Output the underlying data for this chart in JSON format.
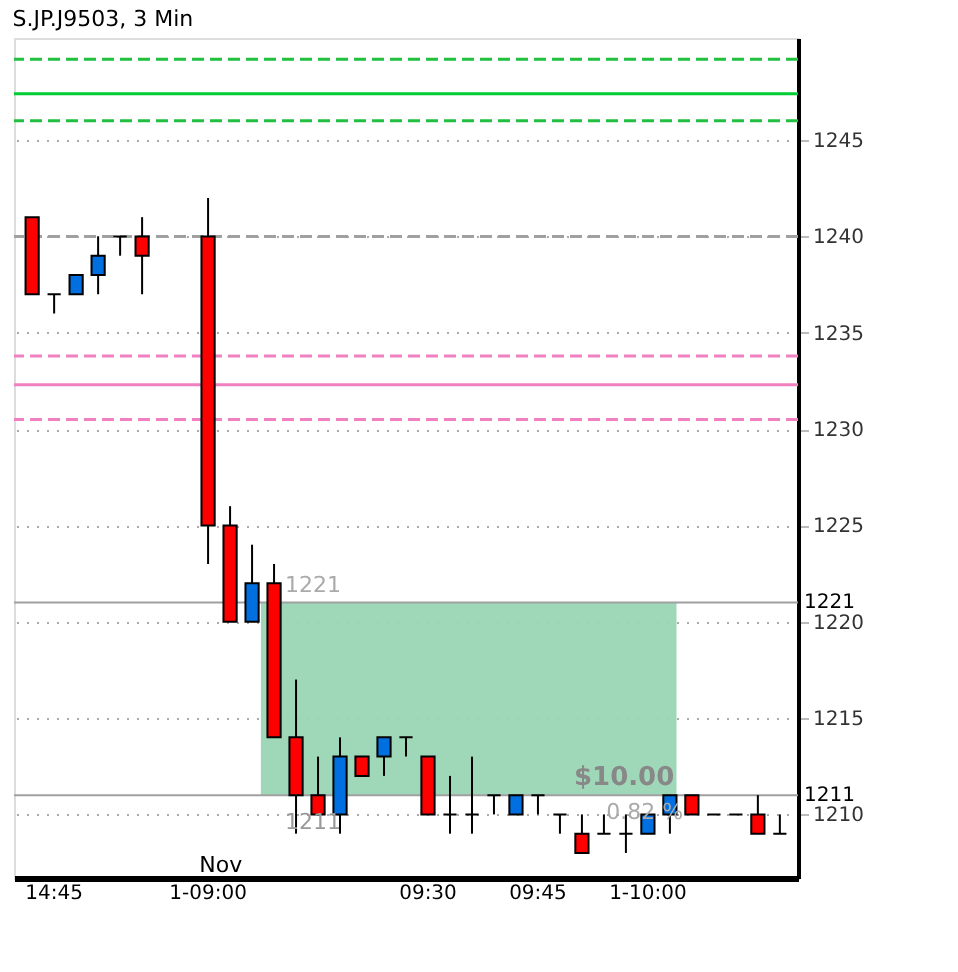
{
  "chart_data": {
    "type": "candlestick",
    "title": "S.JP.J9503, 3 Min",
    "categories": [
      null,
      "14:45",
      null,
      null,
      null,
      null,
      null,
      null,
      "1-09:00",
      null,
      null,
      null,
      null,
      null,
      null,
      null,
      null,
      null,
      "09:30",
      null,
      null,
      null,
      null,
      "09:45",
      null,
      null,
      null,
      null,
      "1-10:00",
      null,
      null,
      null,
      null,
      null,
      null
    ],
    "ohlc": [
      [
        1241,
        1241,
        1237,
        1237
      ],
      [
        1237,
        1237,
        1236,
        1237
      ],
      [
        1237,
        1238,
        1237,
        1238
      ],
      [
        1238,
        1240,
        1237,
        1239
      ],
      [
        1240,
        1240,
        1239,
        1240
      ],
      [
        1240,
        1241,
        1237,
        1239
      ],
      null,
      null,
      [
        1240,
        1242,
        1223,
        1225
      ],
      [
        1225,
        1226,
        1220,
        1220
      ],
      [
        1220,
        1224,
        1220,
        1222
      ],
      [
        1222,
        1223,
        1214,
        1214
      ],
      [
        1214,
        1217,
        1209,
        1211
      ],
      [
        1211,
        1213,
        1210,
        1210
      ],
      [
        1210,
        1214,
        1209,
        1213
      ],
      [
        1213,
        1213,
        1212,
        1212
      ],
      [
        1213,
        1214,
        1212,
        1214
      ],
      [
        1214,
        1214,
        1213,
        1214
      ],
      [
        1213,
        1213,
        1210,
        1210
      ],
      [
        1210,
        1212,
        1209,
        1210
      ],
      [
        1210,
        1213,
        1209,
        1210
      ],
      [
        1211,
        1211,
        1210,
        1211
      ],
      [
        1210,
        1211,
        1210,
        1211
      ],
      [
        1211,
        1211,
        1210,
        1211
      ],
      [
        1210,
        1210,
        1209,
        1210
      ],
      [
        1209,
        1210,
        1208,
        1208
      ],
      [
        1209,
        1210,
        1209,
        1209
      ],
      [
        1209,
        1210,
        1208,
        1209
      ],
      [
        1209,
        1210,
        1209,
        1210
      ],
      [
        1210,
        1211,
        1209,
        1211
      ],
      [
        1211,
        1211,
        1210,
        1210
      ],
      [
        1210,
        1210,
        1210,
        1210
      ],
      [
        1210,
        1210,
        1210,
        1210
      ],
      [
        1210,
        1211,
        1209,
        1209
      ],
      [
        1209,
        1210,
        1209,
        1209
      ]
    ],
    "colors": [
      "#ff0000",
      "#000000",
      "#0070e0",
      "#0070e0",
      "#000000",
      "#ff0000",
      null,
      null,
      "#ff0000",
      "#ff0000",
      "#0070e0",
      "#ff0000",
      "#ff0000",
      "#ff0000",
      "#0070e0",
      "#ff0000",
      "#0070e0",
      "#000000",
      "#ff0000",
      "#000000",
      "#000000",
      "#000000",
      "#0070e0",
      "#000000",
      "#000000",
      "#ff0000",
      "#000000",
      "#000000",
      "#0070e0",
      "#0070e0",
      "#ff0000",
      "#000000",
      "#000000",
      "#ff0000",
      "#000000"
    ],
    "ylim": [
      1206.7,
      1250.3
    ],
    "yticks": [
      1210,
      1215,
      1220,
      1225,
      1230,
      1235,
      1240,
      1245
    ],
    "grid": "y",
    "ref_lines": [
      {
        "axis": "y",
        "value": 1249.2,
        "color": "#22c040",
        "line_style": "dashed"
      },
      {
        "axis": "y",
        "value": 1247.4,
        "color": "#00cc33",
        "line_style": "solid"
      },
      {
        "axis": "y",
        "value": 1246.0,
        "color": "#22c040",
        "line_style": "dashed"
      },
      {
        "axis": "y",
        "value": 1240,
        "color": "#a0a0a0",
        "line_style": "dashed"
      },
      {
        "axis": "y",
        "value": 1233.8,
        "color": "#f080c0",
        "line_style": "dashed"
      },
      {
        "axis": "y",
        "value": 1232.3,
        "color": "#f080c0",
        "line_style": "solid"
      },
      {
        "axis": "y",
        "value": 1230.5,
        "color": "#f080c0",
        "line_style": "dashed"
      },
      {
        "axis": "y",
        "value": 1221,
        "label": "1221",
        "color": "#a0a0a0",
        "line_style": "solid"
      },
      {
        "axis": "y",
        "value": 1211,
        "label": "1211",
        "color": "#a0a0a0",
        "line_style": "solid"
      }
    ],
    "bands": [
      {
        "axis": "y",
        "from": 1211,
        "to": 1221,
        "color": "#99d6b4"
      }
    ],
    "annotations": [
      "Nov",
      "1221",
      "1211",
      "$10.00",
      "0.82 %"
    ]
  }
}
